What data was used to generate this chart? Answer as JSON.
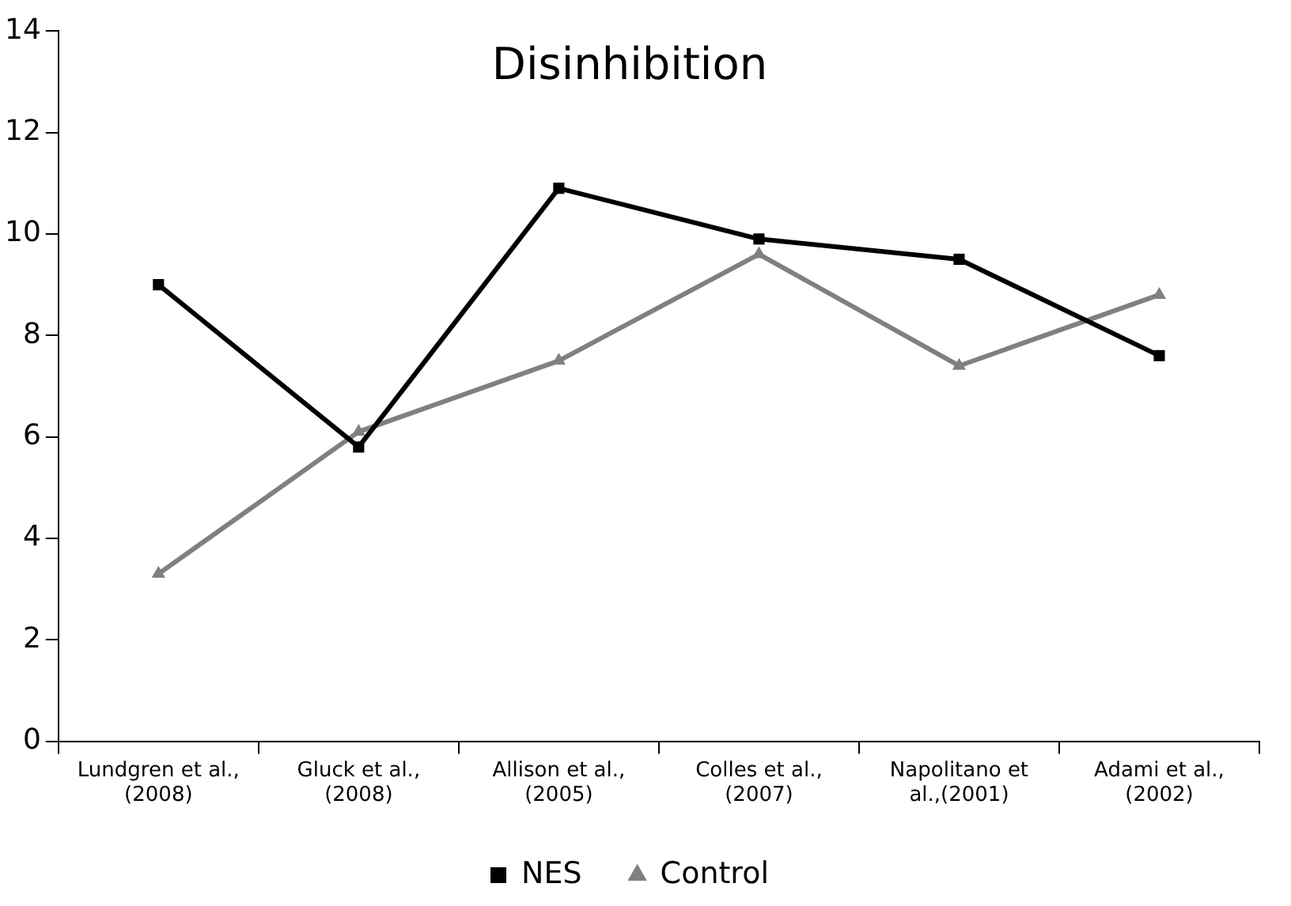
{
  "chart_data": {
    "type": "line",
    "title": "Disinhibition",
    "categories": [
      "Lundgren et al., (2008)",
      "Gluck et al., (2008)",
      "Allison et al., (2005)",
      "Colles et al., (2007)",
      "Napolitano et al.,(2001)",
      "Adami et al., (2002)"
    ],
    "series": [
      {
        "name": "NES",
        "color": "#000000",
        "marker": "square",
        "values": [
          9.0,
          5.8,
          10.9,
          9.9,
          9.5,
          7.6
        ]
      },
      {
        "name": "Control",
        "color": "#808080",
        "marker": "triangle",
        "values": [
          3.3,
          6.1,
          7.5,
          9.6,
          7.4,
          8.8
        ]
      }
    ],
    "ylim": [
      0,
      14
    ],
    "yticks": [
      0,
      2,
      4,
      6,
      8,
      10,
      12,
      14
    ],
    "grid": false,
    "legend": "bottom",
    "line_style": "solid"
  }
}
